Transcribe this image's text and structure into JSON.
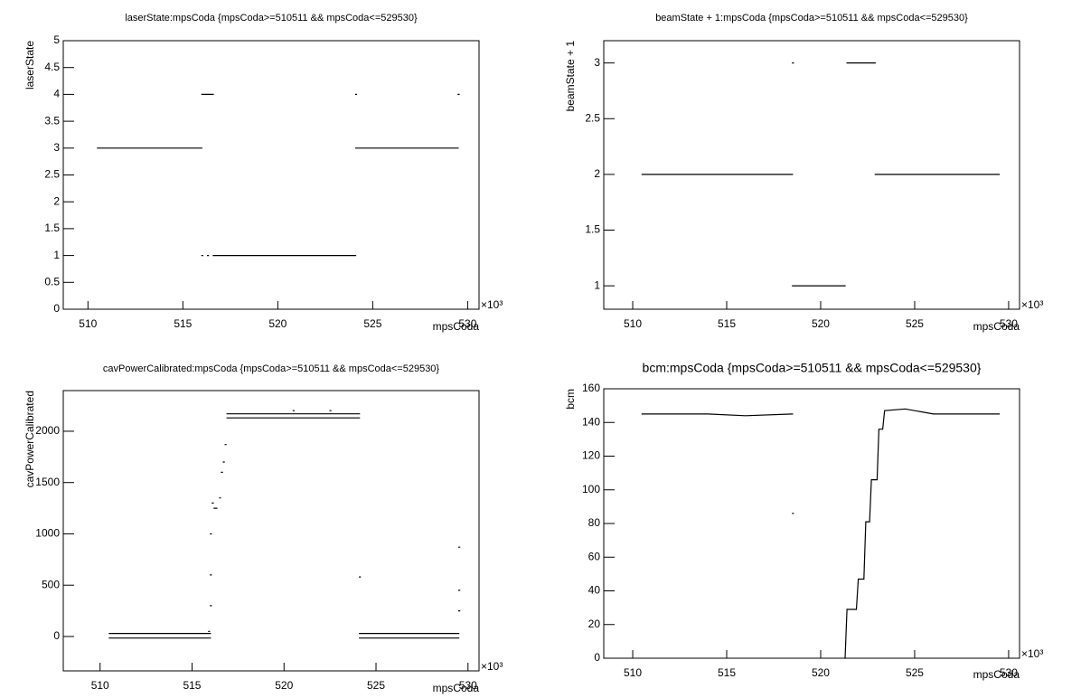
{
  "chart_data": [
    {
      "type": "line",
      "title": "laserState:mpsCoda {mpsCoda>=510511 && mpsCoda<=529530}",
      "x_label": "mpsCoda",
      "y_label": "laserState",
      "x_multiplier": "×10³",
      "xlim": [
        508.7,
        530.6
      ],
      "xticks": [
        510,
        515,
        520,
        525,
        530
      ],
      "ylim": [
        0,
        5
      ],
      "yticks": [
        0,
        0.5,
        1,
        1.5,
        2,
        2.5,
        3,
        3.5,
        4,
        4.5,
        5
      ],
      "series": [
        {
          "color": "#000000",
          "x": [
            510.5,
            516,
            null,
            516,
            516.6,
            null,
            516,
            null,
            516.3,
            null,
            516.6,
            524.1,
            null,
            524.1,
            null,
            524.1,
            529.5,
            null,
            529.5
          ],
          "values": [
            3,
            3,
            null,
            4,
            4,
            null,
            1,
            null,
            1,
            null,
            1,
            1,
            null,
            4,
            null,
            3,
            3,
            null,
            4
          ]
        }
      ]
    },
    {
      "type": "line",
      "title": "beamState + 1:mpsCoda {mpsCoda>=510511 && mpsCoda<=529530}",
      "x_label": "mpsCoda",
      "y_label": "beamState + 1",
      "x_multiplier": "×10³",
      "xlim": [
        508.46,
        530.58
      ],
      "xticks": [
        510,
        515,
        520,
        525,
        530
      ],
      "ylim": [
        0.79,
        3.2
      ],
      "yticks": [
        1,
        1.5,
        2,
        2.5,
        3
      ],
      "series": [
        {
          "color": "#000000",
          "x": [
            510.5,
            518.5,
            null,
            518.5,
            null,
            518.5,
            521.3,
            null,
            521.4,
            522.9,
            null,
            522.9,
            529.5
          ],
          "values": [
            2,
            2,
            null,
            3,
            null,
            1,
            1,
            null,
            3,
            3,
            null,
            2,
            2
          ]
        }
      ]
    },
    {
      "type": "line",
      "title": "cavPowerCalibrated:mpsCoda {mpsCoda>=510511 && mpsCoda<=529530}",
      "x_label": "mpsCoda",
      "y_label": "cavPowerCalibrated",
      "x_multiplier": "×10³",
      "xlim": [
        508,
        530.6
      ],
      "xticks": [
        510,
        515,
        520,
        525,
        530
      ],
      "ylim": [
        -335,
        2396
      ],
      "yticks": [
        0,
        500,
        1000,
        1500,
        2000
      ],
      "series": [
        {
          "color": "#000000",
          "x": [
            510.5,
            516,
            null,
            510.5,
            516,
            null,
            515.9,
            null,
            516,
            null,
            516,
            null,
            516,
            null,
            516.1,
            null,
            516.2,
            null,
            516.3,
            null,
            516.5,
            null,
            516.6,
            null,
            516.7,
            null,
            516.8,
            null,
            516.9,
            524.1,
            null,
            516.9,
            524.1,
            null,
            520.5,
            null,
            522.5,
            null,
            524.1,
            null,
            524.1,
            529.5,
            null,
            524.1,
            529.5,
            null,
            529.5,
            null,
            529.5,
            null,
            529.5
          ],
          "values": [
            30,
            30,
            null,
            -15,
            -15,
            null,
            50,
            null,
            300,
            null,
            600,
            null,
            1000,
            null,
            1300,
            null,
            1250,
            null,
            1250,
            null,
            1350,
            null,
            1600,
            null,
            1700,
            null,
            1870,
            null,
            2170,
            2170,
            null,
            2130,
            2130,
            null,
            2200,
            null,
            2200,
            null,
            580,
            null,
            30,
            30,
            null,
            -15,
            -15,
            null,
            870,
            null,
            450,
            null,
            250
          ]
        }
      ]
    },
    {
      "type": "line",
      "title": "bcm:mpsCoda {mpsCoda>=510511 && mpsCoda<=529530}",
      "x_label": "mpsCoda",
      "y_label": "bcm",
      "x_multiplier": "×10³",
      "xlim": [
        508.46,
        530.58
      ],
      "xticks": [
        510,
        515,
        520,
        525,
        530
      ],
      "ylim": [
        0,
        160
      ],
      "yticks": [
        0,
        20,
        40,
        60,
        80,
        100,
        120,
        140,
        160
      ],
      "series": [
        {
          "color": "#000000",
          "x": [
            510.5,
            512,
            514,
            516,
            518.5,
            null,
            518.5,
            null,
            521.3,
            521.4,
            521.9,
            522,
            522.3,
            522.4,
            522.6,
            522.7,
            523,
            523.1,
            523.3,
            523.4,
            524.5,
            526,
            528,
            529.5
          ],
          "values": [
            145,
            145,
            145,
            144,
            145,
            null,
            86,
            null,
            0,
            29,
            29,
            47,
            47,
            81,
            81,
            106,
            106,
            136,
            136,
            147,
            148,
            145,
            145,
            145
          ]
        }
      ]
    }
  ]
}
